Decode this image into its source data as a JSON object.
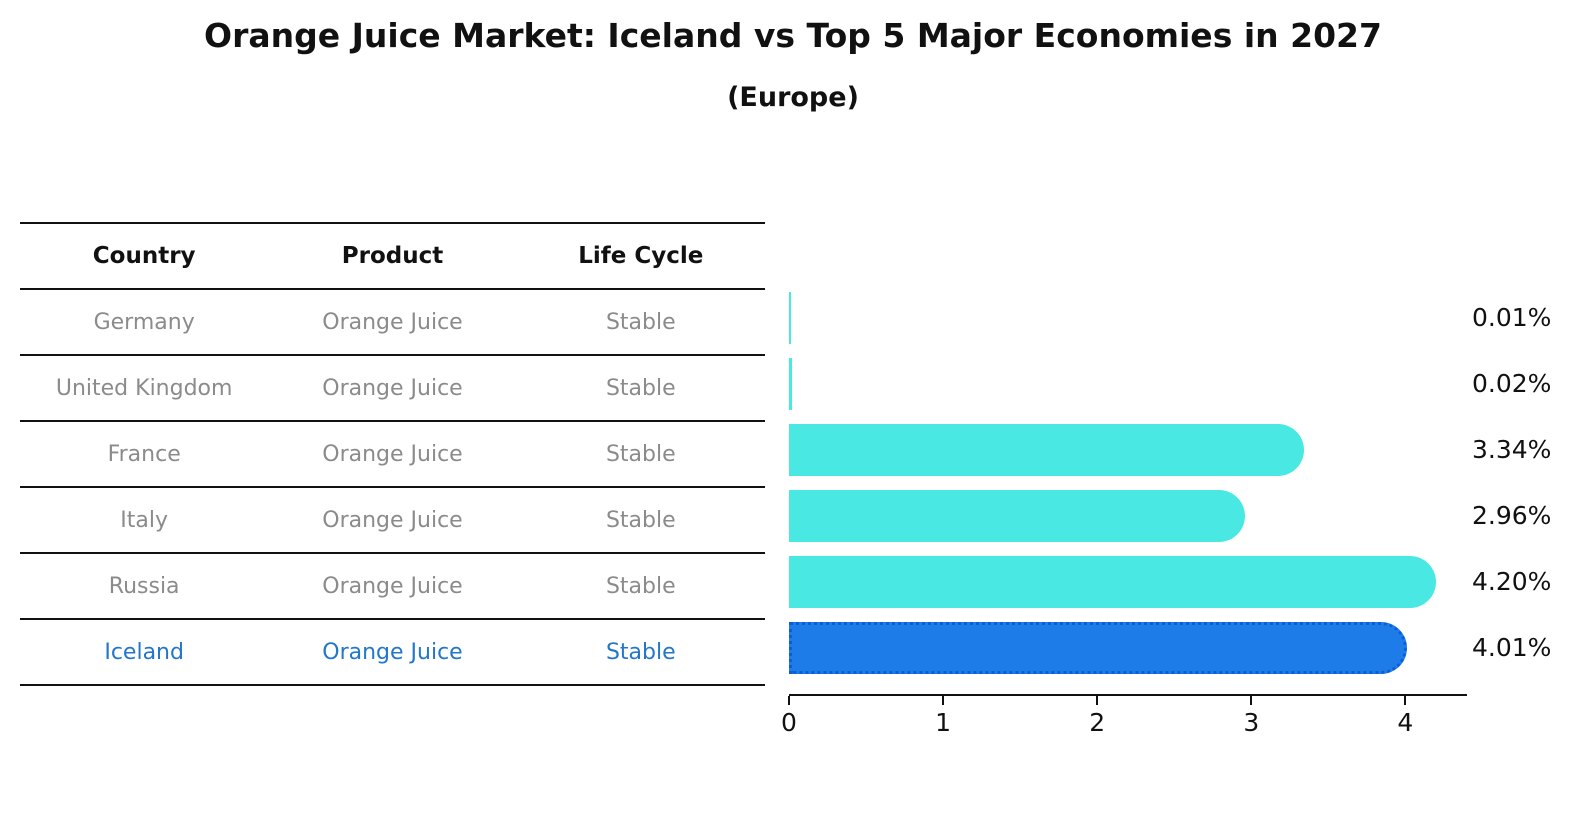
{
  "title": "Orange Juice Market: Iceland vs Top 5 Major Economies in 2027",
  "subtitle": "(Europe)",
  "table": {
    "headers": [
      "Country",
      "Product",
      "Life Cycle"
    ],
    "rows": [
      {
        "country": "Germany",
        "product": "Orange Juice",
        "life_cycle": "Stable",
        "highlight": false
      },
      {
        "country": "United Kingdom",
        "product": "Orange Juice",
        "life_cycle": "Stable",
        "highlight": false
      },
      {
        "country": "France",
        "product": "Orange Juice",
        "life_cycle": "Stable",
        "highlight": false
      },
      {
        "country": "Italy",
        "product": "Orange Juice",
        "life_cycle": "Stable",
        "highlight": false
      },
      {
        "country": "Russia",
        "product": "Orange Juice",
        "life_cycle": "Stable",
        "highlight": false
      },
      {
        "country": "Iceland",
        "product": "Orange Juice",
        "life_cycle": "Stable",
        "highlight": true
      }
    ]
  },
  "chart_data": {
    "type": "bar",
    "orientation": "horizontal",
    "title": "Orange Juice Market: Iceland vs Top 5 Major Economies in 2027",
    "subtitle": "(Europe)",
    "categories": [
      "Germany",
      "United Kingdom",
      "France",
      "Italy",
      "Russia",
      "Iceland"
    ],
    "values": [
      0.01,
      0.02,
      3.34,
      2.96,
      4.2,
      4.01
    ],
    "value_labels": [
      "0.01%",
      "0.02%",
      "3.34%",
      "2.96%",
      "4.20%",
      "4.01%"
    ],
    "highlight_index": 5,
    "xlabel": "",
    "ylabel": "",
    "xlim": [
      0,
      4.4
    ],
    "xticks": [
      0,
      1,
      2,
      3,
      4
    ],
    "grid": false,
    "legend": false
  },
  "colors": {
    "bar": "#49E8E2",
    "highlight_bar": "#1E7CE8",
    "highlight_bar_border": "#0C5ED8",
    "text": "#111111",
    "muted_text": "#8B8B8B",
    "highlight_text": "#2277CC",
    "axis": "#111111",
    "background": "#FFFFFF"
  }
}
